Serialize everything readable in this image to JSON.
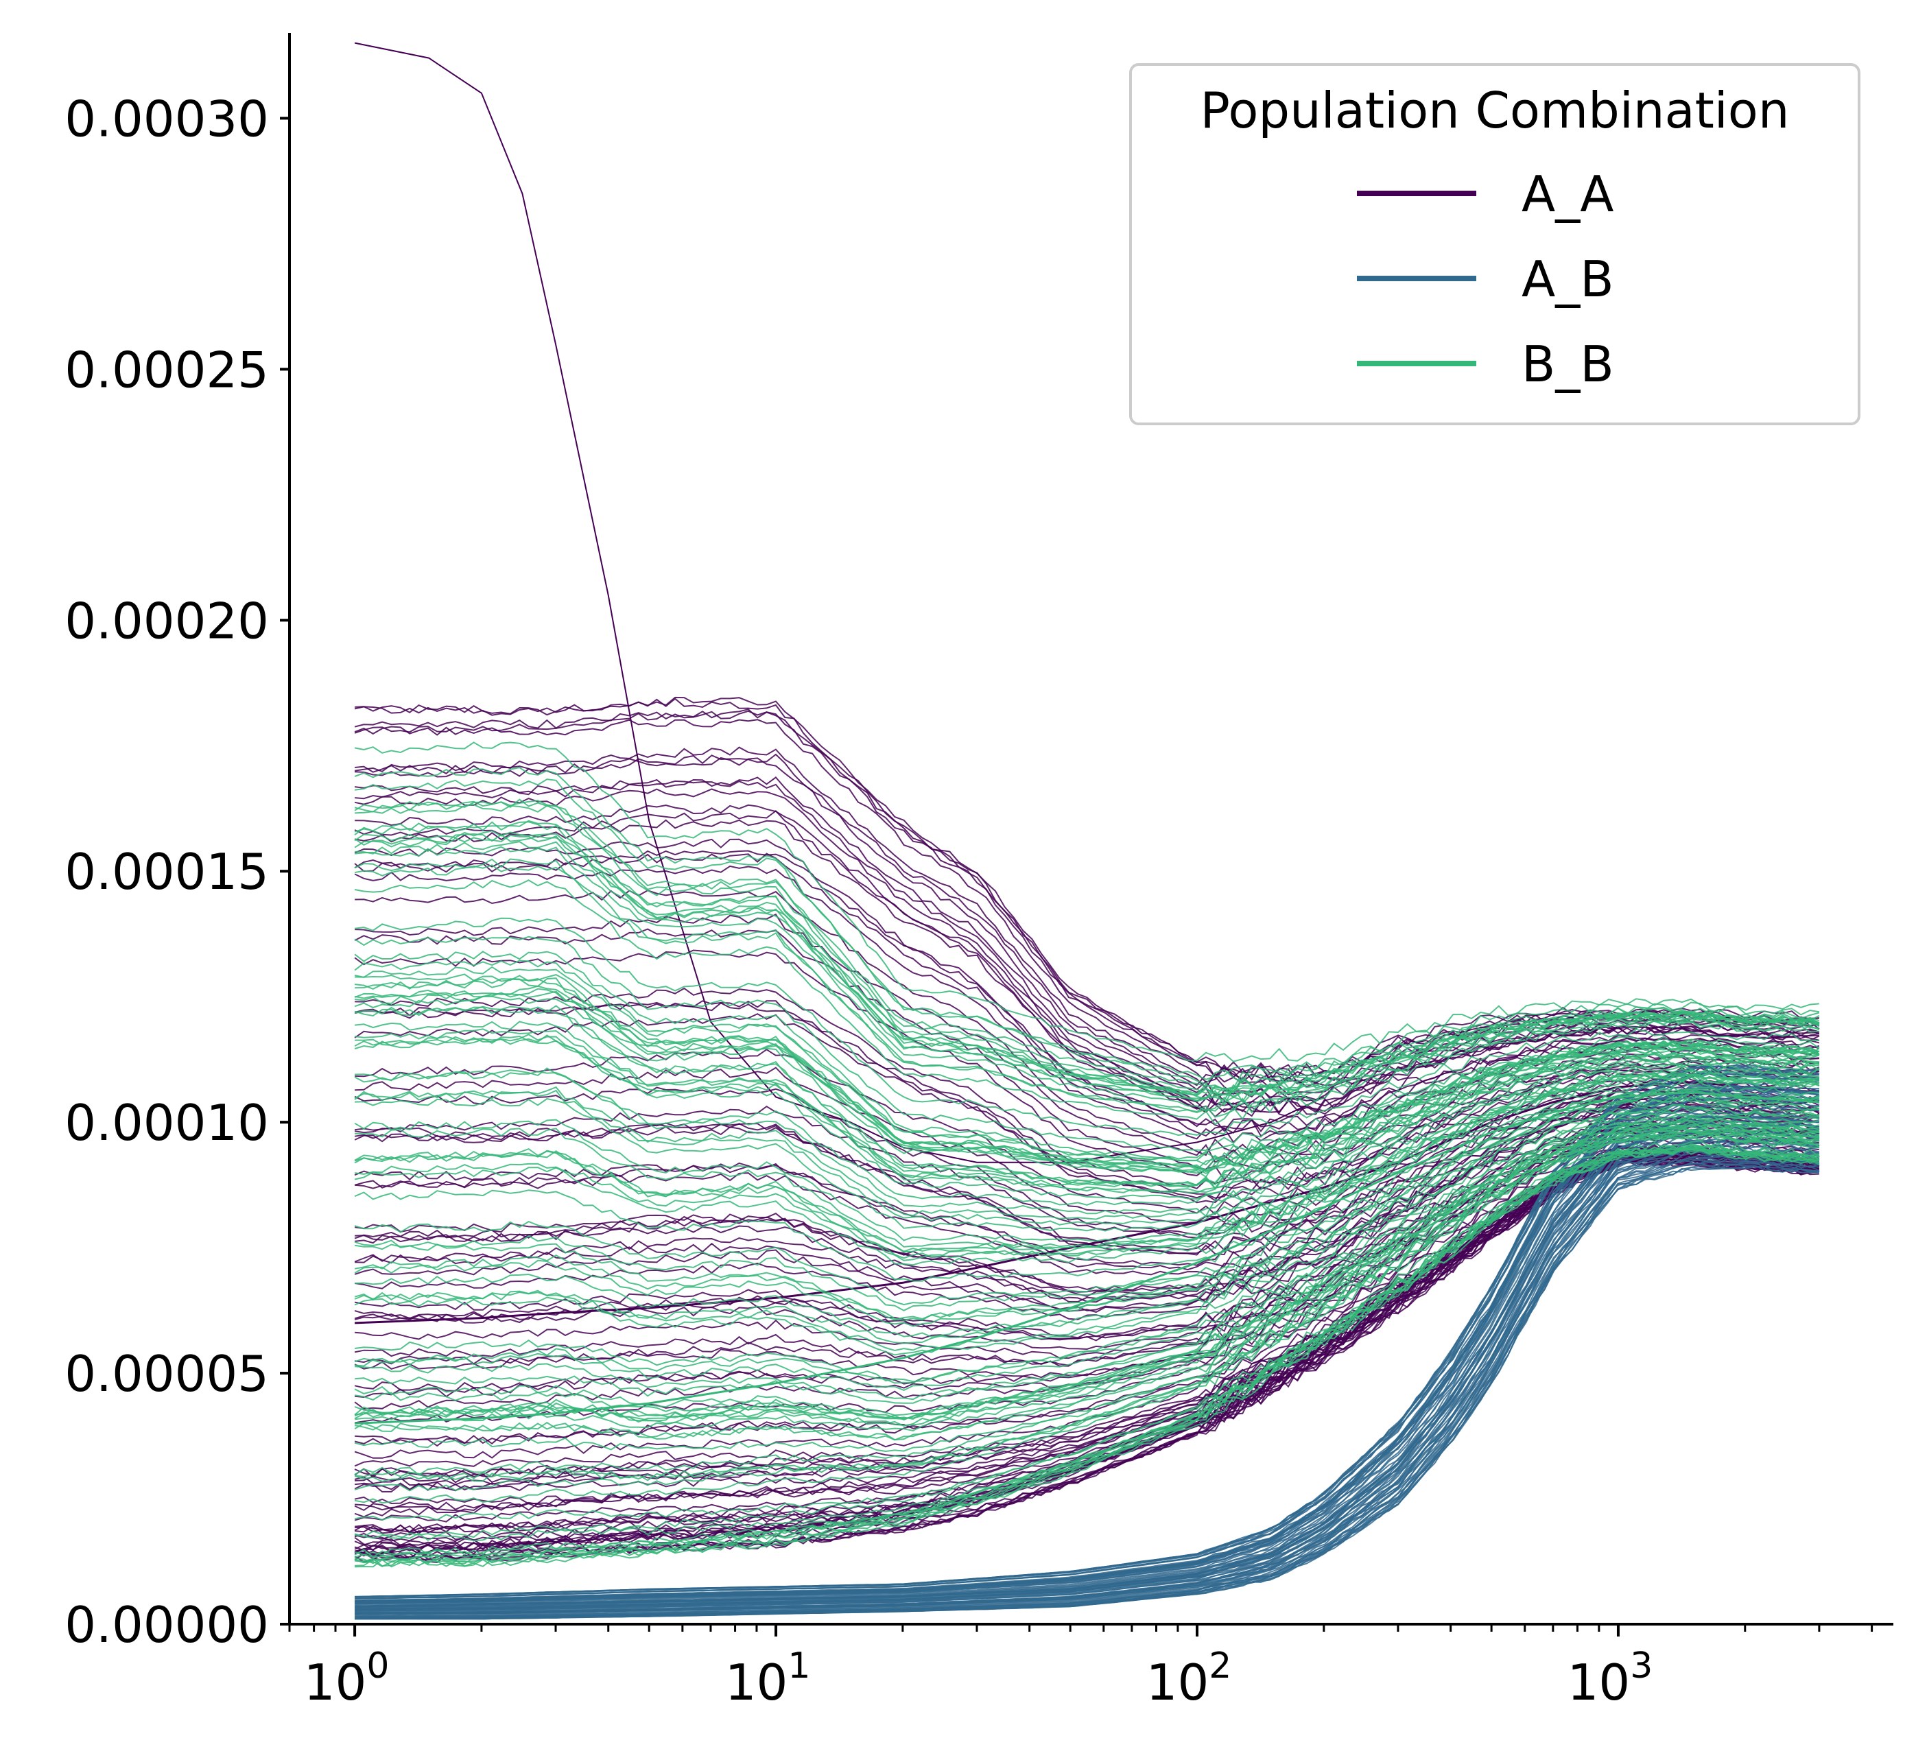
{
  "chart_data": {
    "type": "line",
    "title": "",
    "xlabel": "",
    "ylabel": "",
    "x_scale": "log",
    "xlim": [
      0.7,
      4500
    ],
    "ylim": [
      0,
      0.000317
    ],
    "grid": false,
    "x_ticks": [
      {
        "value": 1,
        "base": "10",
        "exp": "0"
      },
      {
        "value": 10,
        "base": "10",
        "exp": "1"
      },
      {
        "value": 100,
        "base": "10",
        "exp": "2"
      },
      {
        "value": 1000,
        "base": "10",
        "exp": "3"
      }
    ],
    "y_ticks": [
      {
        "value": 0,
        "label": "0.00000"
      },
      {
        "value": 5e-05,
        "label": "0.00005"
      },
      {
        "value": 0.0001,
        "label": "0.00010"
      },
      {
        "value": 0.00015,
        "label": "0.00015"
      },
      {
        "value": 0.0002,
        "label": "0.00020"
      },
      {
        "value": 0.00025,
        "label": "0.00025"
      },
      {
        "value": 0.0003,
        "label": "0.00030"
      }
    ],
    "legend": {
      "title": "Population Combination",
      "placement": "top-right",
      "entries": [
        {
          "name": "A_A",
          "color": "#440154"
        },
        {
          "name": "A_B",
          "color": "#31688e"
        },
        {
          "name": "B_B",
          "color": "#35b779"
        }
      ]
    },
    "series": [
      {
        "name": "A_A",
        "color": "#440154",
        "x": [
          1,
          2,
          3,
          5,
          10,
          20,
          30,
          50,
          100,
          200,
          300,
          500,
          700,
          1000,
          1500,
          2000,
          3000
        ],
        "y": [
          6e-05,
          6.1e-05,
          6.2e-05,
          6.3e-05,
          6.5e-05,
          6.8e-05,
          7.1e-05,
          7.5e-05,
          8e-05,
          8.7e-05,
          9.2e-05,
          0.0001,
          0.000104,
          0.000107,
          0.000108,
          0.000107,
          0.000106
        ],
        "lo": [
          1.3e-05,
          1.3e-05,
          1.4e-05,
          1.5e-05,
          1.6e-05,
          1.9e-05,
          2.2e-05,
          2.8e-05,
          3.8e-05,
          5.3e-05,
          6.3e-05,
          7.7e-05,
          8.6e-05,
          9.2e-05,
          9.2e-05,
          9.1e-05,
          9e-05
        ],
        "hi": [
          0.000188,
          0.000188,
          0.000188,
          0.00019,
          0.00019,
          0.000165,
          0.000155,
          0.00013,
          0.000115,
          0.000112,
          0.000118,
          0.000122,
          0.000123,
          0.000123,
          0.000123,
          0.000122,
          0.000122
        ],
        "outlier": {
          "x": [
            1,
            1.5,
            2,
            2.5,
            3,
            4,
            5,
            7,
            10,
            15,
            20,
            30,
            50,
            70,
            100,
            150,
            200
          ],
          "y": [
            0.000315,
            0.000312,
            0.000305,
            0.000285,
            0.000255,
            0.000205,
            0.00016,
            0.00012,
            0.000105,
            0.0001,
            9.5e-05,
            9.2e-05,
            9.2e-05,
            9.4e-05,
            9.6e-05,
            0.0001,
            0.000105
          ]
        }
      },
      {
        "name": "A_B",
        "color": "#31688e",
        "x": [
          1,
          2,
          5,
          10,
          20,
          50,
          100,
          150,
          200,
          300,
          400,
          500,
          700,
          1000,
          1500,
          2000,
          3000
        ],
        "y": [
          3.5e-06,
          4e-06,
          4.5e-06,
          5e-06,
          5.5e-06,
          7e-06,
          1e-05,
          1.4e-05,
          2e-05,
          3.2e-05,
          4.5e-05,
          5.8e-05,
          8e-05,
          9.6e-05,
          0.000101,
          0.000101,
          0.0001
        ],
        "lo": [
          1e-06,
          1e-06,
          1.5e-06,
          2e-06,
          2.5e-06,
          3.5e-06,
          6e-06,
          9e-06,
          1.4e-05,
          2.4e-05,
          3.6e-05,
          4.8e-05,
          7e-05,
          8.7e-05,
          9.1e-05,
          9.1e-05,
          9e-05
        ],
        "hi": [
          5.5e-06,
          6e-06,
          7e-06,
          7.5e-06,
          8e-06,
          1.05e-05,
          1.4e-05,
          1.9e-05,
          2.6e-05,
          4e-05,
          5.4e-05,
          6.7e-05,
          9e-05,
          0.000105,
          0.000111,
          0.000111,
          0.00011
        ]
      },
      {
        "name": "B_B",
        "color": "#35b779",
        "x": [
          1,
          2,
          3,
          5,
          10,
          20,
          30,
          50,
          100,
          200,
          300,
          500,
          700,
          1000,
          1500,
          2000,
          3000
        ],
        "y": [
          4e-05,
          4.1e-05,
          4.2e-05,
          4.4e-05,
          4.8e-05,
          5.3e-05,
          5.7e-05,
          6.3e-05,
          7.2e-05,
          8.3e-05,
          9e-05,
          9.8e-05,
          0.000102,
          0.000105,
          0.000106,
          0.000105,
          0.000104
        ],
        "lo": [
          1.2e-05,
          1.2e-05,
          1.3e-05,
          1.4e-05,
          1.6e-05,
          2e-05,
          2.4e-05,
          3e-05,
          4e-05,
          5.6e-05,
          6.6e-05,
          8e-05,
          8.8e-05,
          9.3e-05,
          9.4e-05,
          9.3e-05,
          9.2e-05
        ],
        "hi": [
          0.000174,
          0.000175,
          0.000175,
          0.000157,
          0.000158,
          0.000127,
          0.000125,
          0.000118,
          0.000112,
          0.000114,
          0.000118,
          0.000122,
          0.000123,
          0.000124,
          0.000124,
          0.000123,
          0.000123
        ]
      }
    ]
  }
}
